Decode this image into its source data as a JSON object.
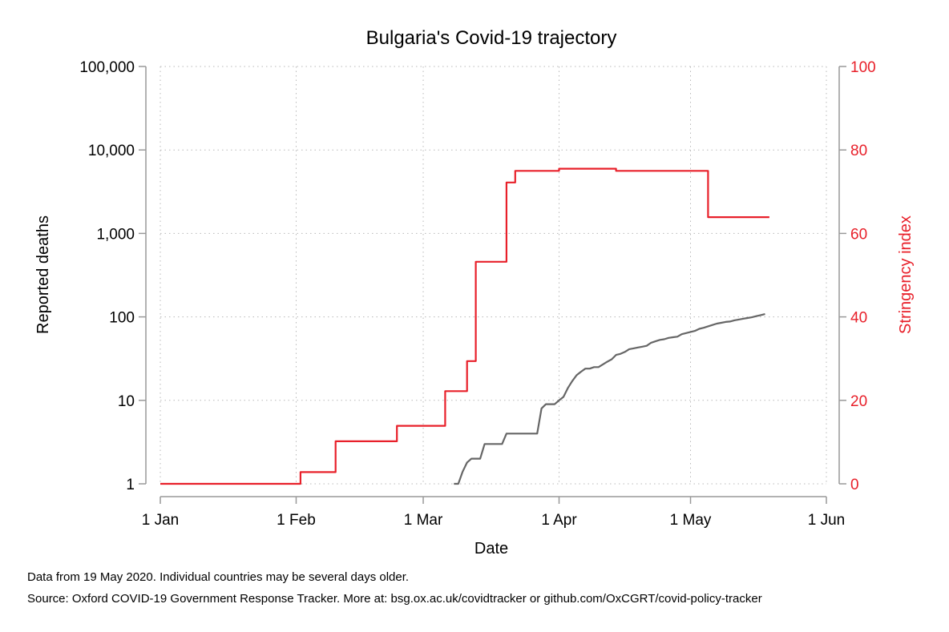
{
  "chart_data": {
    "type": "line",
    "title": "Bulgaria's Covid-19 trajectory",
    "xlabel": "Date",
    "ylabel_left": "Reported deaths",
    "ylabel_right": "Stringency index",
    "x_ticks": [
      "1 Jan",
      "1 Feb",
      "1 Mar",
      "1 Apr",
      "1 May",
      "1 Jun"
    ],
    "x_tick_dates": [
      "2020-01-01",
      "2020-02-01",
      "2020-03-01",
      "2020-04-01",
      "2020-05-01",
      "2020-06-01"
    ],
    "xlim": [
      "2020-01-01",
      "2020-06-01"
    ],
    "y_left_scale": "log",
    "y_left_ticks": [
      1,
      10,
      100,
      1000,
      10000,
      100000
    ],
    "y_left_tick_labels": [
      "1",
      "10",
      "100",
      "1,000",
      "10,000",
      "100,000"
    ],
    "y_left_lim": [
      1,
      100000
    ],
    "y_right_ticks": [
      0,
      20,
      40,
      60,
      80,
      100
    ],
    "y_right_lim": [
      0,
      100
    ],
    "grid": true,
    "colors": {
      "deaths": "#666666",
      "stringency": "#e8202a",
      "axis": "#999999",
      "right_axis_text": "#e8202a"
    },
    "series": [
      {
        "name": "",
        "axis": "right",
        "step": true,
        "points": [
          [
            "2020-01-01",
            0
          ],
          [
            "2020-02-02",
            2.8
          ],
          [
            "2020-02-10",
            10.2
          ],
          [
            "2020-02-24",
            13.9
          ],
          [
            "2020-03-06",
            22.2
          ],
          [
            "2020-03-11",
            29.4
          ],
          [
            "2020-03-13",
            53.2
          ],
          [
            "2020-03-20",
            72.2
          ],
          [
            "2020-03-22",
            75.0
          ],
          [
            "2020-04-01",
            75.5
          ],
          [
            "2020-04-14",
            75.0
          ],
          [
            "2020-05-05",
            63.9
          ],
          [
            "2020-05-19",
            63.9
          ]
        ]
      },
      {
        "name": "",
        "axis": "left",
        "points": [
          [
            "2020-03-08",
            1
          ],
          [
            "2020-03-09",
            1
          ],
          [
            "2020-03-10",
            1.4
          ],
          [
            "2020-03-11",
            1.8
          ],
          [
            "2020-03-12",
            2
          ],
          [
            "2020-03-13",
            2
          ],
          [
            "2020-03-14",
            2
          ],
          [
            "2020-03-15",
            3
          ],
          [
            "2020-03-16",
            3
          ],
          [
            "2020-03-17",
            3
          ],
          [
            "2020-03-18",
            3
          ],
          [
            "2020-03-19",
            3
          ],
          [
            "2020-03-20",
            4
          ],
          [
            "2020-03-21",
            4
          ],
          [
            "2020-03-22",
            4
          ],
          [
            "2020-03-23",
            4
          ],
          [
            "2020-03-24",
            4
          ],
          [
            "2020-03-25",
            4
          ],
          [
            "2020-03-26",
            4
          ],
          [
            "2020-03-27",
            4
          ],
          [
            "2020-03-28",
            8
          ],
          [
            "2020-03-29",
            9
          ],
          [
            "2020-03-30",
            9
          ],
          [
            "2020-03-31",
            9
          ],
          [
            "2020-04-01",
            10
          ],
          [
            "2020-04-02",
            11
          ],
          [
            "2020-04-03",
            14
          ],
          [
            "2020-04-04",
            17
          ],
          [
            "2020-04-05",
            20
          ],
          [
            "2020-04-06",
            22
          ],
          [
            "2020-04-07",
            24
          ],
          [
            "2020-04-08",
            24
          ],
          [
            "2020-04-09",
            25
          ],
          [
            "2020-04-10",
            25
          ],
          [
            "2020-04-11",
            27
          ],
          [
            "2020-04-12",
            29
          ],
          [
            "2020-04-13",
            31
          ],
          [
            "2020-04-14",
            35
          ],
          [
            "2020-04-15",
            36
          ],
          [
            "2020-04-16",
            38
          ],
          [
            "2020-04-17",
            41
          ],
          [
            "2020-04-18",
            42
          ],
          [
            "2020-04-19",
            43
          ],
          [
            "2020-04-20",
            44
          ],
          [
            "2020-04-21",
            45
          ],
          [
            "2020-04-22",
            49
          ],
          [
            "2020-04-23",
            51
          ],
          [
            "2020-04-24",
            53
          ],
          [
            "2020-04-25",
            54
          ],
          [
            "2020-04-26",
            56
          ],
          [
            "2020-04-27",
            57
          ],
          [
            "2020-04-28",
            58
          ],
          [
            "2020-04-29",
            62
          ],
          [
            "2020-04-30",
            64
          ],
          [
            "2020-05-01",
            66
          ],
          [
            "2020-05-02",
            68
          ],
          [
            "2020-05-03",
            72
          ],
          [
            "2020-05-04",
            74
          ],
          [
            "2020-05-05",
            77
          ],
          [
            "2020-05-06",
            80
          ],
          [
            "2020-05-07",
            83
          ],
          [
            "2020-05-08",
            85
          ],
          [
            "2020-05-09",
            87
          ],
          [
            "2020-05-10",
            88
          ],
          [
            "2020-05-11",
            91
          ],
          [
            "2020-05-12",
            93
          ],
          [
            "2020-05-13",
            95
          ],
          [
            "2020-05-14",
            97
          ],
          [
            "2020-05-15",
            99
          ],
          [
            "2020-05-16",
            102
          ],
          [
            "2020-05-17",
            105
          ],
          [
            "2020-05-18",
            108
          ]
        ]
      }
    ]
  },
  "footnotes": {
    "data_note": "Data from 19 May 2020. Individual countries may be several days older.",
    "source_note": "Source: Oxford COVID-19 Government Response Tracker. More at: bsg.ox.ac.uk/covidtracker or github.com/OxCGRT/covid-policy-tracker"
  }
}
